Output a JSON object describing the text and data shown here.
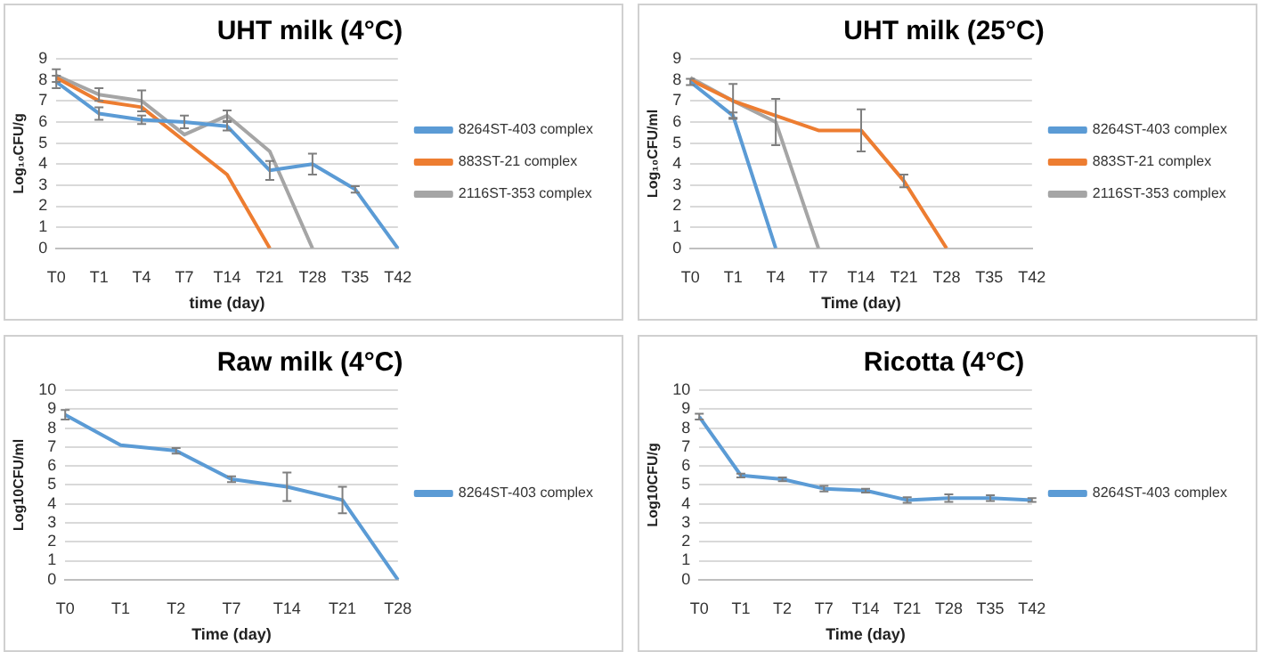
{
  "chart_data": [
    {
      "type": "line",
      "title": "UHT milk (4°C)",
      "xlabel": "time (day)",
      "ylabel": "Log₁₀CFU/g",
      "categories": [
        "T0",
        "T1",
        "T4",
        "T7",
        "T14",
        "T21",
        "T28",
        "T35",
        "T42"
      ],
      "ylim": [
        0,
        9
      ],
      "yticks": [
        0,
        1,
        2,
        3,
        4,
        5,
        6,
        7,
        8,
        9
      ],
      "grid": "y",
      "legend": "right",
      "series": [
        {
          "name": "8264ST-403 complex",
          "color": "#5b9bd5",
          "values": [
            7.9,
            6.4,
            6.1,
            6.0,
            5.8,
            3.7,
            4.0,
            2.8,
            0
          ],
          "errors": [
            0.3,
            0.3,
            0.2,
            0.3,
            0.2,
            0.45,
            0.5,
            0.15,
            null
          ]
        },
        {
          "name": "883ST-21 complex",
          "color": "#ed7d31",
          "values": [
            8.1,
            7.0,
            6.7,
            5.1,
            3.5,
            0,
            null,
            null,
            null
          ]
        },
        {
          "name": "2116ST-353 complex",
          "color": "#a5a5a5",
          "values": [
            8.2,
            7.3,
            7.0,
            5.4,
            6.3,
            4.6,
            0,
            null,
            null
          ],
          "errors": [
            0.3,
            0.3,
            0.5,
            null,
            0.25,
            null,
            null,
            null,
            null
          ]
        }
      ]
    },
    {
      "type": "line",
      "title": "UHT milk (25°C)",
      "xlabel": "Time (day)",
      "ylabel": "Log₁₀CFU/ml",
      "categories": [
        "T0",
        "T1",
        "T4",
        "T7",
        "T14",
        "T21",
        "T28",
        "T35",
        "T42"
      ],
      "ylim": [
        0,
        9
      ],
      "yticks": [
        0,
        1,
        2,
        3,
        4,
        5,
        6,
        7,
        8,
        9
      ],
      "grid": "y",
      "legend": "right",
      "series": [
        {
          "name": "8264ST-403 complex",
          "color": "#5b9bd5",
          "values": [
            7.9,
            6.3,
            0,
            null,
            null,
            null,
            null,
            null,
            null
          ],
          "errors": [
            0.15,
            0.15,
            null,
            null,
            null,
            null,
            null,
            null,
            null
          ]
        },
        {
          "name": "883ST-21 complex",
          "color": "#ed7d31",
          "values": [
            8.0,
            7.0,
            6.3,
            5.6,
            5.6,
            3.2,
            0,
            null,
            null
          ],
          "errors": [
            null,
            0.8,
            null,
            null,
            1.0,
            0.3,
            null,
            null,
            null
          ]
        },
        {
          "name": "2116ST-353 complex",
          "color": "#a5a5a5",
          "values": [
            8.1,
            7.0,
            6.0,
            0,
            null,
            null,
            null,
            null,
            null
          ],
          "errors": [
            null,
            null,
            1.1,
            null,
            null,
            null,
            null,
            null,
            null
          ]
        }
      ]
    },
    {
      "type": "line",
      "title": "Raw milk (4°C)",
      "xlabel": "Time (day)",
      "ylabel": "Log10CFU/ml",
      "categories": [
        "T0",
        "T1",
        "T2",
        "T7",
        "T14",
        "T21",
        "T28"
      ],
      "ylim": [
        0,
        10
      ],
      "yticks": [
        0,
        1,
        2,
        3,
        4,
        5,
        6,
        7,
        8,
        9,
        10
      ],
      "grid": "y",
      "legend": "right",
      "series": [
        {
          "name": "8264ST-403 complex",
          "color": "#5b9bd5",
          "values": [
            8.7,
            7.1,
            6.8,
            5.3,
            4.9,
            4.2,
            0
          ],
          "errors": [
            0.25,
            null,
            0.15,
            0.15,
            0.75,
            0.7,
            null
          ]
        }
      ]
    },
    {
      "type": "line",
      "title": "Ricotta (4°C)",
      "xlabel": "Time (day)",
      "ylabel": "Log10CFU/g",
      "categories": [
        "T0",
        "T1",
        "T2",
        "T7",
        "T14",
        "T21",
        "T28",
        "T35",
        "T42"
      ],
      "ylim": [
        0,
        10
      ],
      "yticks": [
        0,
        1,
        2,
        3,
        4,
        5,
        6,
        7,
        8,
        9,
        10
      ],
      "grid": "y",
      "legend": "right",
      "series": [
        {
          "name": "8264ST-403 complex",
          "color": "#5b9bd5",
          "values": [
            8.6,
            5.5,
            5.3,
            4.8,
            4.7,
            4.2,
            4.3,
            4.3,
            4.2
          ],
          "errors": [
            0.15,
            0.1,
            0.1,
            0.15,
            0.1,
            0.15,
            0.2,
            0.15,
            0.1
          ]
        }
      ]
    }
  ]
}
